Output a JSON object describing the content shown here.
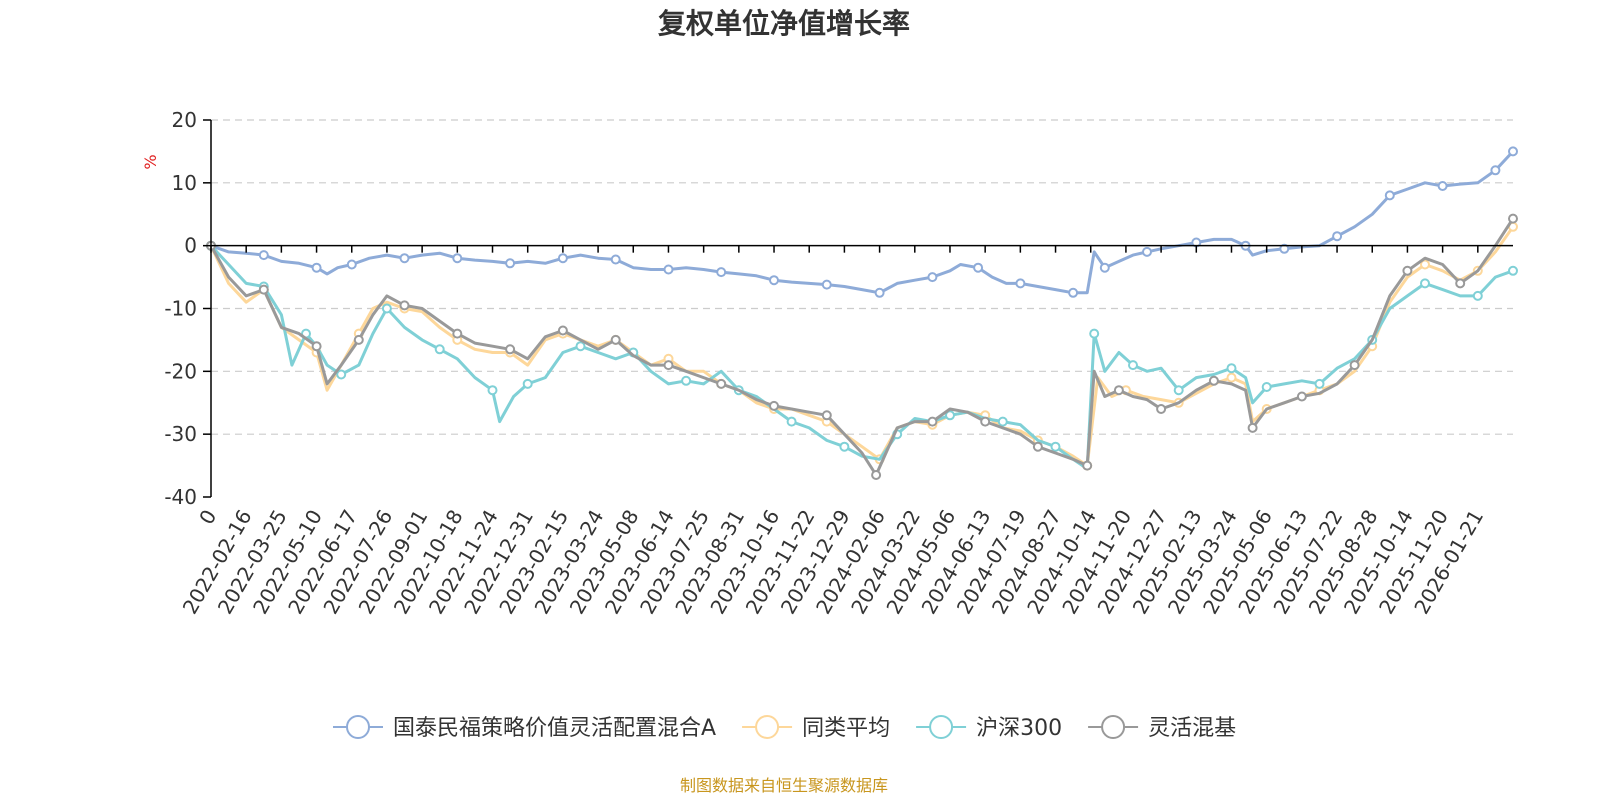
{
  "chart_data": {
    "type": "line",
    "title": "复权单位净值增长率",
    "ylabel": "%",
    "ylim": [
      -40,
      20
    ],
    "yticks": [
      20,
      10,
      0,
      -10,
      -20,
      -30,
      -40
    ],
    "grid": true,
    "legend_position": "bottom",
    "x_ticks": [
      "0",
      "2022-02-16",
      "2022-03-25",
      "2022-05-10",
      "2022-06-17",
      "2022-07-26",
      "2022-09-01",
      "2022-10-18",
      "2022-11-24",
      "2022-12-31",
      "2023-02-15",
      "2023-03-24",
      "2023-05-08",
      "2023-06-14",
      "2023-07-25",
      "2023-08-31",
      "2023-10-16",
      "2023-11-22",
      "2023-12-29",
      "2024-02-06",
      "2024-03-22",
      "2024-05-06",
      "2024-06-13",
      "2024-07-19",
      "2024-08-27",
      "2024-10-14",
      "2024-11-20",
      "2024-12-27",
      "2025-02-13",
      "2025-03-24",
      "2025-05-06",
      "2025-06-13",
      "2025-07-22",
      "2025-08-28",
      "2025-10-14",
      "2025-11-20",
      "2026-01-21"
    ],
    "x_range": [
      0,
      37
    ],
    "series": [
      {
        "name": "国泰民福策略价值灵活配置混合A",
        "color": "#8eabd8",
        "points": [
          [
            0,
            0
          ],
          [
            0.5,
            -1
          ],
          [
            1,
            -1.2
          ],
          [
            1.5,
            -1.5
          ],
          [
            2,
            -2.5
          ],
          [
            2.5,
            -2.8
          ],
          [
            3,
            -3.5
          ],
          [
            3.3,
            -4.5
          ],
          [
            3.6,
            -3.5
          ],
          [
            4,
            -3
          ],
          [
            4.5,
            -2
          ],
          [
            5,
            -1.5
          ],
          [
            5.5,
            -2
          ],
          [
            6,
            -1.5
          ],
          [
            6.5,
            -1.2
          ],
          [
            7,
            -2
          ],
          [
            7.5,
            -2.3
          ],
          [
            8,
            -2.5
          ],
          [
            8.5,
            -2.8
          ],
          [
            9,
            -2.5
          ],
          [
            9.5,
            -2.8
          ],
          [
            10,
            -2
          ],
          [
            10.5,
            -1.5
          ],
          [
            11,
            -2
          ],
          [
            11.5,
            -2.2
          ],
          [
            12,
            -3.5
          ],
          [
            12.5,
            -3.8
          ],
          [
            13,
            -3.8
          ],
          [
            13.5,
            -3.5
          ],
          [
            14,
            -3.8
          ],
          [
            14.5,
            -4.2
          ],
          [
            15,
            -4.5
          ],
          [
            15.5,
            -4.8
          ],
          [
            16,
            -5.5
          ],
          [
            16.5,
            -5.8
          ],
          [
            17,
            -6
          ],
          [
            17.5,
            -6.2
          ],
          [
            18,
            -6.5
          ],
          [
            18.5,
            -7
          ],
          [
            19,
            -7.5
          ],
          [
            19.5,
            -6
          ],
          [
            20,
            -5.5
          ],
          [
            20.5,
            -5
          ],
          [
            21,
            -4
          ],
          [
            21.3,
            -3
          ],
          [
            21.8,
            -3.5
          ],
          [
            22.2,
            -5
          ],
          [
            22.6,
            -6
          ],
          [
            23,
            -6
          ],
          [
            23.5,
            -6.5
          ],
          [
            24,
            -7
          ],
          [
            24.5,
            -7.5
          ],
          [
            24.9,
            -7.5
          ],
          [
            25.1,
            -1
          ],
          [
            25.4,
            -3.5
          ],
          [
            25.8,
            -2.5
          ],
          [
            26.2,
            -1.5
          ],
          [
            26.6,
            -1
          ],
          [
            27,
            -0.5
          ],
          [
            27.5,
            0
          ],
          [
            28,
            0.5
          ],
          [
            28.5,
            1
          ],
          [
            29,
            1
          ],
          [
            29.4,
            0
          ],
          [
            29.6,
            -1.5
          ],
          [
            30,
            -0.8
          ],
          [
            30.5,
            -0.5
          ],
          [
            31,
            -0.2
          ],
          [
            31.5,
            0
          ],
          [
            32,
            1.5
          ],
          [
            32.5,
            3
          ],
          [
            33,
            5
          ],
          [
            33.5,
            8
          ],
          [
            34,
            9
          ],
          [
            34.5,
            10
          ],
          [
            35,
            9.5
          ],
          [
            35.5,
            9.8
          ],
          [
            36,
            10
          ],
          [
            36.5,
            12
          ],
          [
            37,
            15
          ]
        ]
      },
      {
        "name": "同类平均",
        "color": "#fdd79a",
        "points": [
          [
            0,
            0
          ],
          [
            0.5,
            -6
          ],
          [
            1,
            -9
          ],
          [
            1.5,
            -7
          ],
          [
            2,
            -13
          ],
          [
            2.5,
            -15
          ],
          [
            3,
            -17
          ],
          [
            3.3,
            -23
          ],
          [
            3.7,
            -19
          ],
          [
            4.2,
            -14
          ],
          [
            4.6,
            -10
          ],
          [
            5,
            -9
          ],
          [
            5.5,
            -10
          ],
          [
            6,
            -10.5
          ],
          [
            6.5,
            -13
          ],
          [
            7,
            -15
          ],
          [
            7.5,
            -16.5
          ],
          [
            8,
            -17
          ],
          [
            8.5,
            -17
          ],
          [
            9,
            -19
          ],
          [
            9.5,
            -15
          ],
          [
            10,
            -14
          ],
          [
            10.5,
            -15
          ],
          [
            11,
            -16
          ],
          [
            11.5,
            -15
          ],
          [
            12,
            -17
          ],
          [
            12.5,
            -19
          ],
          [
            13,
            -18
          ],
          [
            13.5,
            -20
          ],
          [
            14,
            -20
          ],
          [
            14.5,
            -22
          ],
          [
            15,
            -23
          ],
          [
            15.5,
            -25
          ],
          [
            16,
            -26
          ],
          [
            16.5,
            -26
          ],
          [
            17,
            -27
          ],
          [
            17.5,
            -28
          ],
          [
            18,
            -30
          ],
          [
            18.5,
            -32
          ],
          [
            19,
            -34
          ],
          [
            19.5,
            -29
          ],
          [
            20,
            -28
          ],
          [
            20.5,
            -28.5
          ],
          [
            21,
            -27
          ],
          [
            21.5,
            -26.5
          ],
          [
            22,
            -27
          ],
          [
            22.5,
            -29
          ],
          [
            23,
            -29.5
          ],
          [
            23.5,
            -31
          ],
          [
            24,
            -32
          ],
          [
            24.5,
            -33.5
          ],
          [
            24.9,
            -35
          ],
          [
            25.2,
            -21
          ],
          [
            25.6,
            -24
          ],
          [
            26,
            -23
          ],
          [
            26.5,
            -24
          ],
          [
            27,
            -24.5
          ],
          [
            27.5,
            -25
          ],
          [
            28,
            -23.5
          ],
          [
            28.5,
            -22
          ],
          [
            29,
            -21
          ],
          [
            29.4,
            -22
          ],
          [
            29.6,
            -28
          ],
          [
            30,
            -26
          ],
          [
            30.5,
            -25
          ],
          [
            31,
            -24
          ],
          [
            31.5,
            -23
          ],
          [
            32,
            -22
          ],
          [
            32.5,
            -20
          ],
          [
            33,
            -16
          ],
          [
            33.5,
            -9
          ],
          [
            34,
            -5
          ],
          [
            34.5,
            -3
          ],
          [
            35,
            -4
          ],
          [
            35.5,
            -5.5
          ],
          [
            36,
            -4
          ],
          [
            36.5,
            -1
          ],
          [
            37,
            3
          ]
        ]
      },
      {
        "name": "沪深300",
        "color": "#7fd0d6",
        "points": [
          [
            0,
            0
          ],
          [
            0.5,
            -3
          ],
          [
            1,
            -6
          ],
          [
            1.5,
            -6.5
          ],
          [
            2,
            -11
          ],
          [
            2.3,
            -19
          ],
          [
            2.7,
            -14
          ],
          [
            3,
            -16
          ],
          [
            3.3,
            -19
          ],
          [
            3.7,
            -20.5
          ],
          [
            4.2,
            -19
          ],
          [
            4.6,
            -14
          ],
          [
            5,
            -10
          ],
          [
            5.5,
            -13
          ],
          [
            6,
            -15
          ],
          [
            6.5,
            -16.5
          ],
          [
            7,
            -18
          ],
          [
            7.5,
            -21
          ],
          [
            8,
            -23
          ],
          [
            8.2,
            -28
          ],
          [
            8.6,
            -24
          ],
          [
            9,
            -22
          ],
          [
            9.5,
            -21
          ],
          [
            10,
            -17
          ],
          [
            10.5,
            -16
          ],
          [
            11,
            -17
          ],
          [
            11.5,
            -18
          ],
          [
            12,
            -17
          ],
          [
            12.5,
            -20
          ],
          [
            13,
            -22
          ],
          [
            13.5,
            -21.5
          ],
          [
            14,
            -22
          ],
          [
            14.5,
            -20
          ],
          [
            15,
            -23
          ],
          [
            15.5,
            -24
          ],
          [
            16,
            -26
          ],
          [
            16.5,
            -28
          ],
          [
            17,
            -29
          ],
          [
            17.5,
            -31
          ],
          [
            18,
            -32
          ],
          [
            18.5,
            -33.5
          ],
          [
            19,
            -34
          ],
          [
            19.5,
            -30
          ],
          [
            20,
            -27.5
          ],
          [
            20.5,
            -28
          ],
          [
            21,
            -27
          ],
          [
            21.5,
            -26.5
          ],
          [
            22,
            -27.5
          ],
          [
            22.5,
            -28
          ],
          [
            23,
            -28.5
          ],
          [
            23.5,
            -31
          ],
          [
            24,
            -32
          ],
          [
            24.5,
            -34
          ],
          [
            24.9,
            -35.5
          ],
          [
            25.1,
            -14
          ],
          [
            25.4,
            -20
          ],
          [
            25.8,
            -17
          ],
          [
            26.2,
            -19
          ],
          [
            26.6,
            -20
          ],
          [
            27,
            -19.5
          ],
          [
            27.5,
            -23
          ],
          [
            28,
            -21
          ],
          [
            28.5,
            -20.5
          ],
          [
            29,
            -19.5
          ],
          [
            29.4,
            -21
          ],
          [
            29.6,
            -25
          ],
          [
            30,
            -22.5
          ],
          [
            30.5,
            -22
          ],
          [
            31,
            -21.5
          ],
          [
            31.5,
            -22
          ],
          [
            32,
            -19.5
          ],
          [
            32.5,
            -18
          ],
          [
            33,
            -15
          ],
          [
            33.5,
            -10
          ],
          [
            34,
            -8
          ],
          [
            34.5,
            -6
          ],
          [
            35,
            -7
          ],
          [
            35.5,
            -8
          ],
          [
            36,
            -8
          ],
          [
            36.5,
            -5
          ],
          [
            37,
            -4
          ]
        ]
      },
      {
        "name": "灵活混基",
        "color": "#999999",
        "points": [
          [
            0,
            0
          ],
          [
            0.5,
            -5
          ],
          [
            1,
            -8
          ],
          [
            1.5,
            -7
          ],
          [
            2,
            -13
          ],
          [
            2.5,
            -14
          ],
          [
            3,
            -16
          ],
          [
            3.3,
            -22
          ],
          [
            3.7,
            -19
          ],
          [
            4.2,
            -15
          ],
          [
            4.6,
            -11
          ],
          [
            5,
            -8
          ],
          [
            5.5,
            -9.5
          ],
          [
            6,
            -10
          ],
          [
            6.5,
            -12
          ],
          [
            7,
            -14
          ],
          [
            7.5,
            -15.5
          ],
          [
            8,
            -16
          ],
          [
            8.5,
            -16.5
          ],
          [
            9,
            -18
          ],
          [
            9.5,
            -14.5
          ],
          [
            10,
            -13.5
          ],
          [
            10.5,
            -15
          ],
          [
            11,
            -16.5
          ],
          [
            11.5,
            -15
          ],
          [
            12,
            -17.5
          ],
          [
            12.5,
            -19
          ],
          [
            13,
            -19
          ],
          [
            13.5,
            -20
          ],
          [
            14,
            -21
          ],
          [
            14.5,
            -22
          ],
          [
            15,
            -23
          ],
          [
            15.5,
            -24.5
          ],
          [
            16,
            -25.5
          ],
          [
            16.5,
            -26
          ],
          [
            17,
            -26.5
          ],
          [
            17.5,
            -27
          ],
          [
            18,
            -30
          ],
          [
            18.5,
            -33
          ],
          [
            18.9,
            -36.5
          ],
          [
            19.5,
            -29
          ],
          [
            20,
            -28
          ],
          [
            20.5,
            -28
          ],
          [
            21,
            -26
          ],
          [
            21.5,
            -26.5
          ],
          [
            22,
            -28
          ],
          [
            22.5,
            -29
          ],
          [
            23,
            -30
          ],
          [
            23.5,
            -32
          ],
          [
            24,
            -33
          ],
          [
            24.5,
            -34
          ],
          [
            24.9,
            -35
          ],
          [
            25.1,
            -20
          ],
          [
            25.4,
            -24
          ],
          [
            25.8,
            -23
          ],
          [
            26.2,
            -24
          ],
          [
            26.6,
            -24.5
          ],
          [
            27,
            -26
          ],
          [
            27.5,
            -25
          ],
          [
            28,
            -23
          ],
          [
            28.5,
            -21.5
          ],
          [
            29,
            -22
          ],
          [
            29.4,
            -23
          ],
          [
            29.6,
            -29
          ],
          [
            30,
            -26
          ],
          [
            30.5,
            -25
          ],
          [
            31,
            -24
          ],
          [
            31.5,
            -23.5
          ],
          [
            32,
            -22
          ],
          [
            32.5,
            -19
          ],
          [
            33,
            -15
          ],
          [
            33.5,
            -8
          ],
          [
            34,
            -4
          ],
          [
            34.5,
            -2
          ],
          [
            35,
            -3
          ],
          [
            35.5,
            -6
          ],
          [
            36,
            -4
          ],
          [
            36.5,
            0
          ],
          [
            37,
            4.3
          ]
        ]
      }
    ]
  },
  "source_text": "制图数据来自恒生聚源数据库"
}
